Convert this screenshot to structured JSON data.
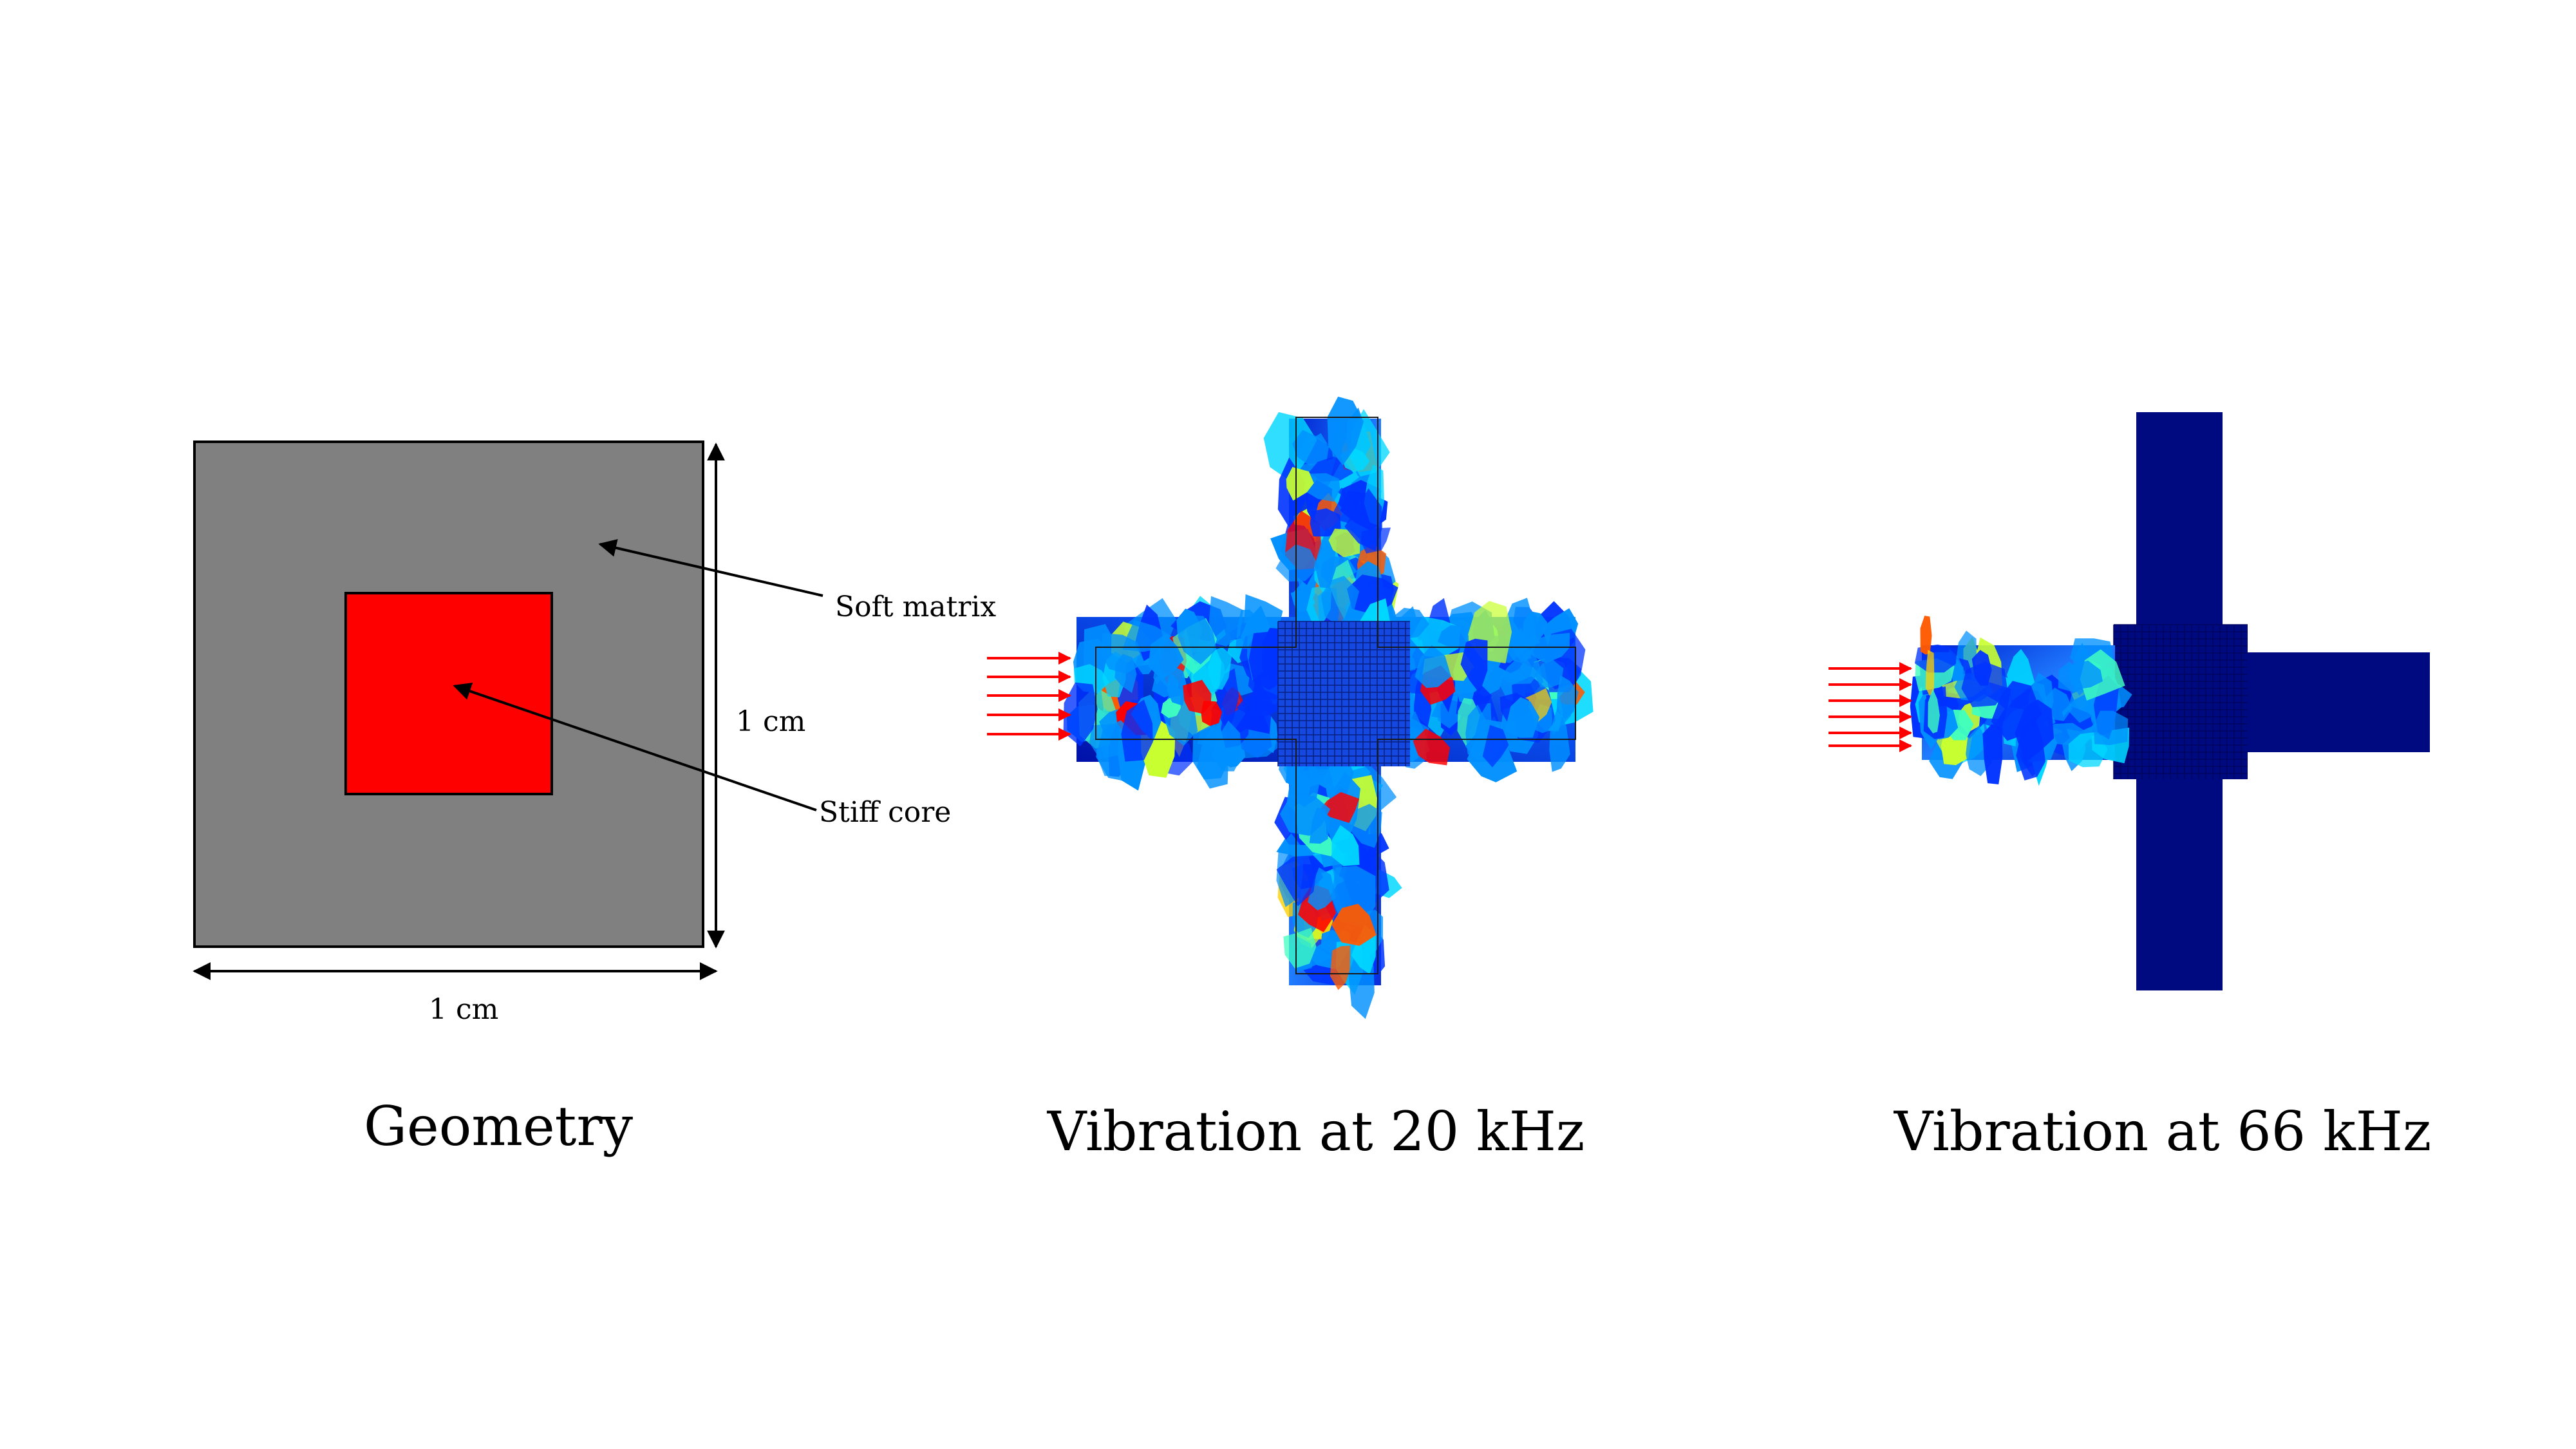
{
  "panels": {
    "geometry": {
      "caption": "Geometry",
      "soft_matrix_label": "Soft matrix",
      "stiff_core_label": "Stiff core",
      "height_label": "1 cm",
      "width_label": "1 cm",
      "matrix_color": "#808080",
      "core_color": "#ff0000"
    },
    "vib20": {
      "caption": "Vibration at 20 kHz"
    },
    "vib66": {
      "caption": "Vibration at 66 kHz",
      "body_color": "#000a80"
    }
  },
  "arrow_color": "#ff0000",
  "colormap": [
    "#00008b",
    "#0033ff",
    "#0090ff",
    "#00d8ff",
    "#40ffc0",
    "#c8ff30",
    "#ffd000",
    "#ff5a00",
    "#ff0000"
  ]
}
